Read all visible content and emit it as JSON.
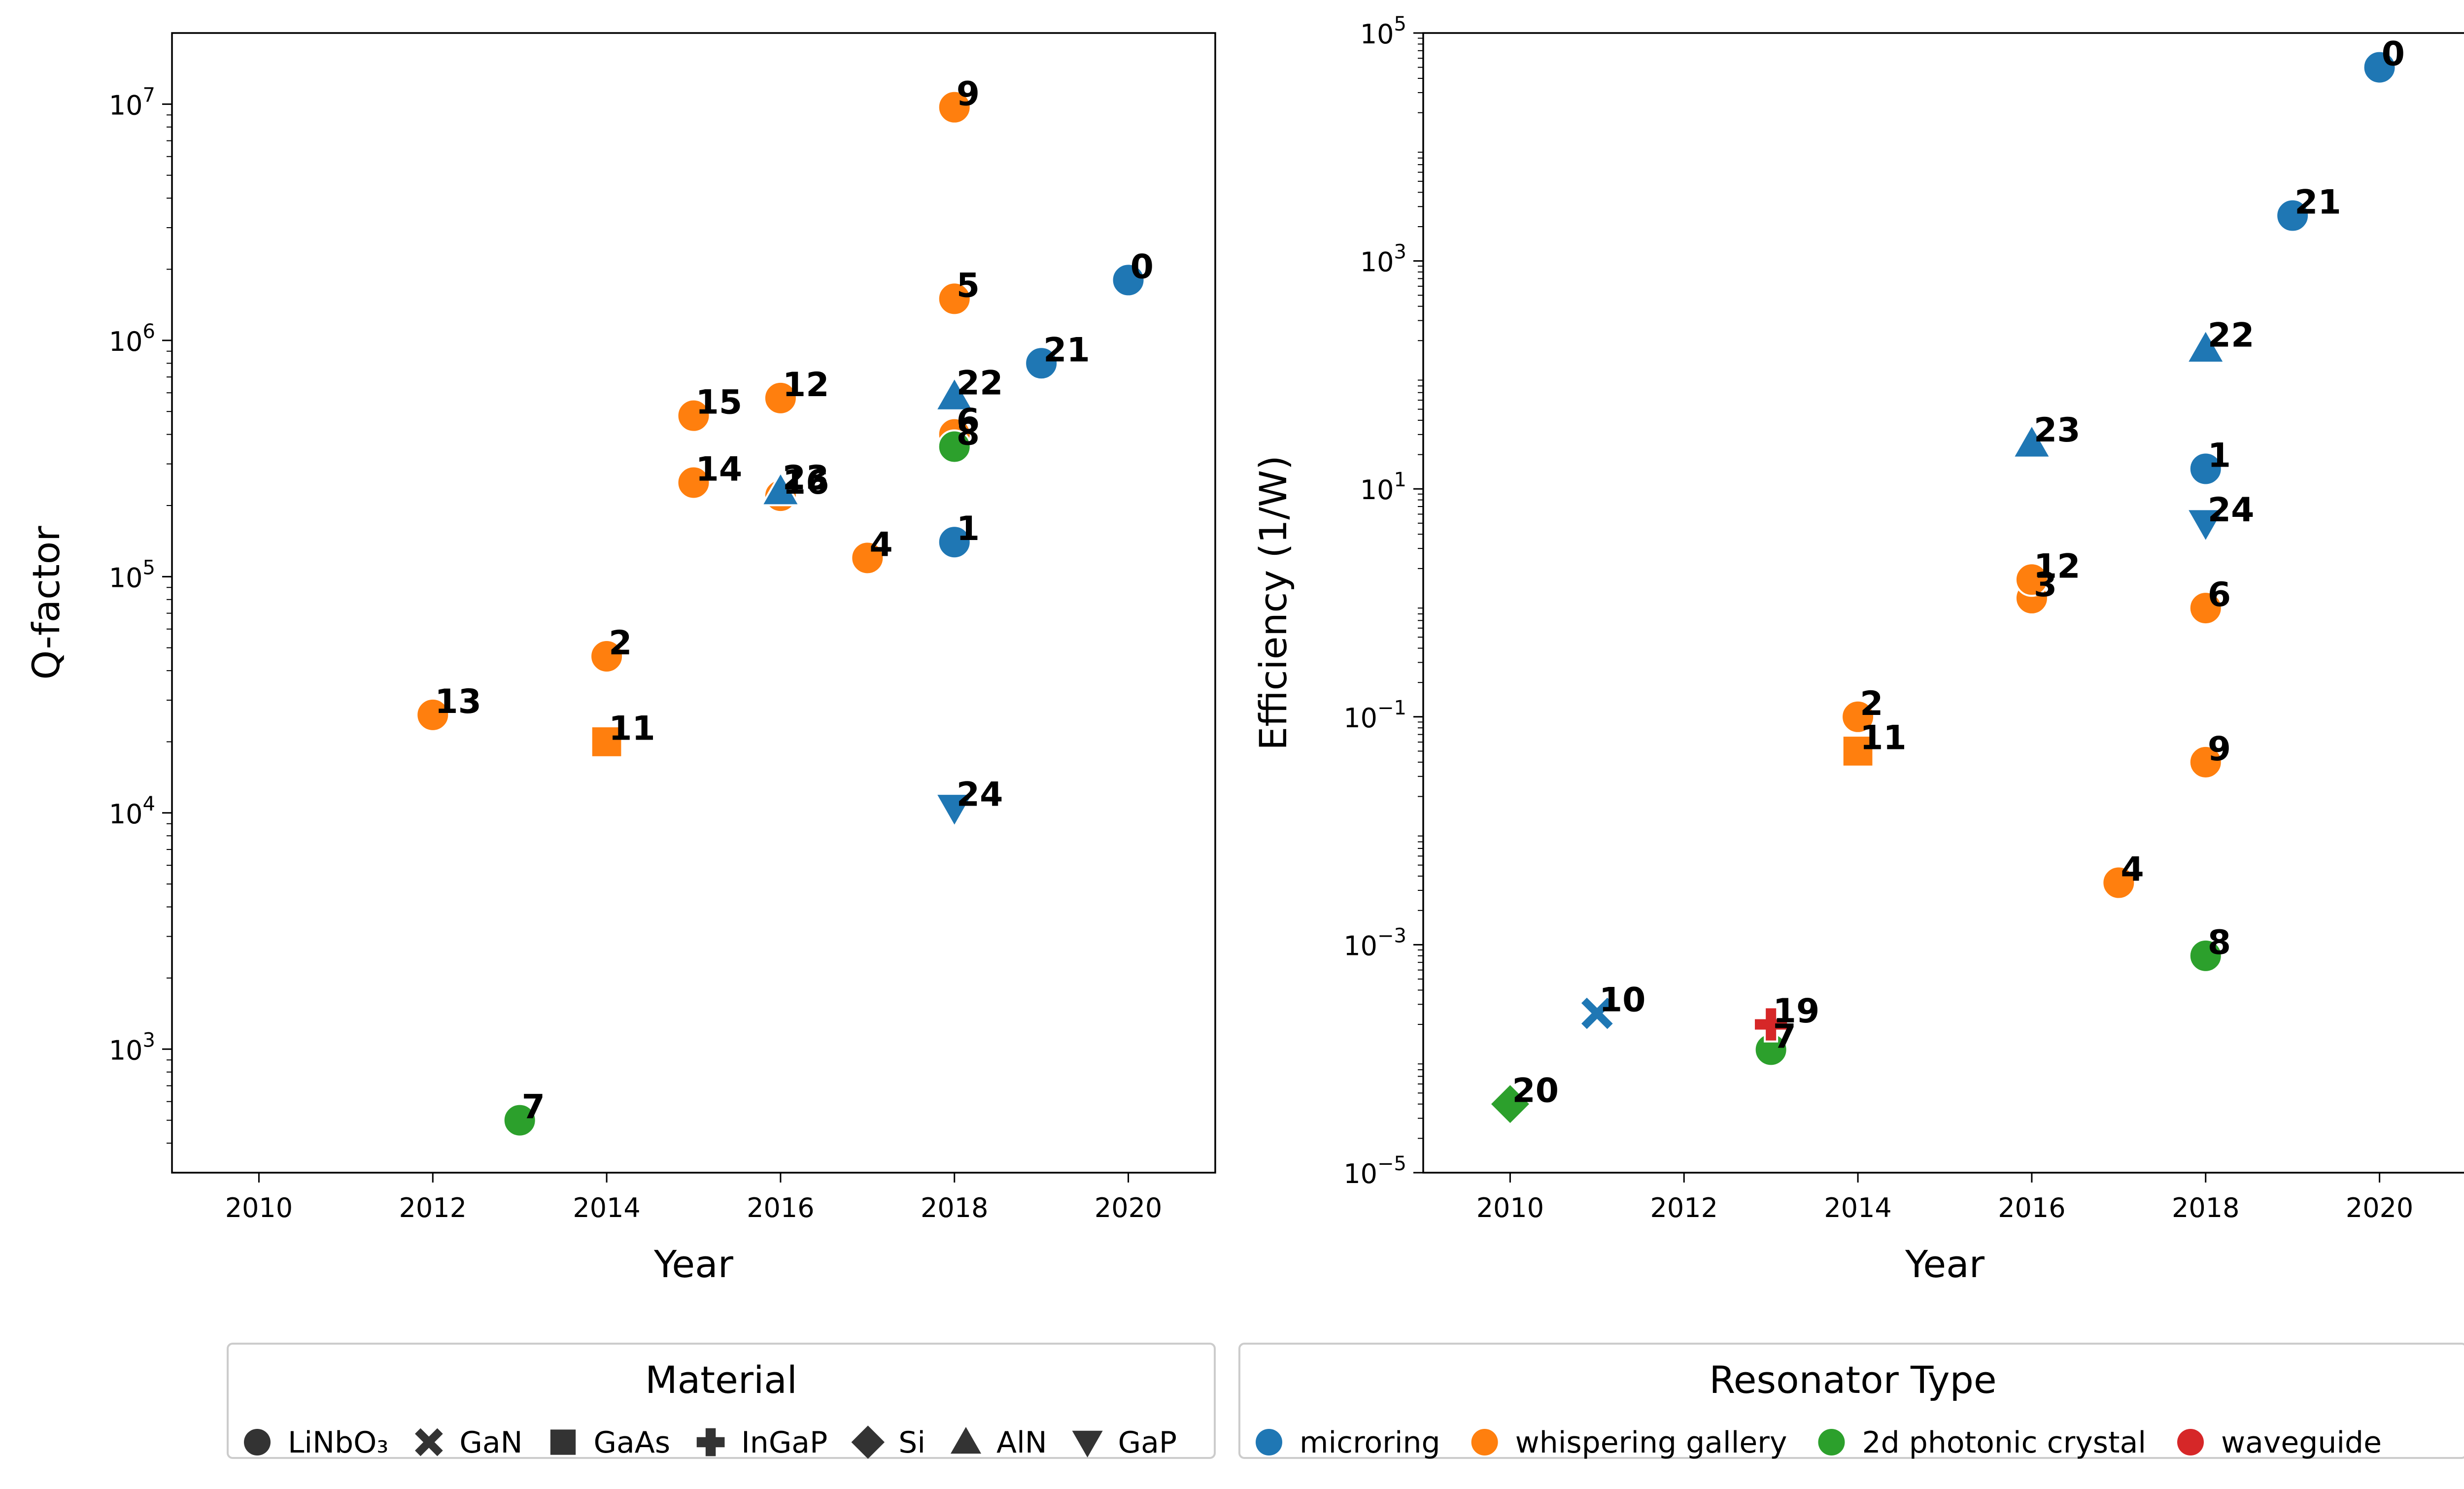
{
  "chart_data": [
    {
      "type": "scatter",
      "xlabel": "Year",
      "ylabel": "Q-factor",
      "yscale": "log",
      "xlim": [
        2009,
        2021
      ],
      "ylim": [
        300,
        20000000
      ],
      "xticks": [
        2010,
        2012,
        2014,
        2016,
        2018,
        2020
      ],
      "yticks": [
        {
          "value": 1000,
          "base": "10",
          "exp": "3"
        },
        {
          "value": 10000,
          "base": "10",
          "exp": "4"
        },
        {
          "value": 100000,
          "base": "10",
          "exp": "5"
        },
        {
          "value": 1000000,
          "base": "10",
          "exp": "6"
        },
        {
          "value": 10000000,
          "base": "10",
          "exp": "7"
        }
      ],
      "grid": false,
      "points": [
        {
          "label": "0",
          "x": 2020,
          "y": 1800000,
          "type": "microring",
          "material": "LiNbO3"
        },
        {
          "label": "1",
          "x": 2018,
          "y": 140000,
          "type": "microring",
          "material": "LiNbO3"
        },
        {
          "label": "2",
          "x": 2014,
          "y": 46000,
          "type": "whispering gallery",
          "material": "LiNbO3"
        },
        {
          "label": "4",
          "x": 2017,
          "y": 120000,
          "type": "whispering gallery",
          "material": "LiNbO3"
        },
        {
          "label": "5",
          "x": 2018,
          "y": 1500000,
          "type": "whispering gallery",
          "material": "LiNbO3"
        },
        {
          "label": "6",
          "x": 2018,
          "y": 400000,
          "type": "whispering gallery",
          "material": "LiNbO3"
        },
        {
          "label": "7",
          "x": 2013,
          "y": 500,
          "type": "2d photonic crystal",
          "material": "LiNbO3"
        },
        {
          "label": "8",
          "x": 2018,
          "y": 355000,
          "type": "2d photonic crystal",
          "material": "LiNbO3"
        },
        {
          "label": "9",
          "x": 2018,
          "y": 9700000,
          "type": "whispering gallery",
          "material": "LiNbO3"
        },
        {
          "label": "11",
          "x": 2014,
          "y": 20000,
          "type": "whispering gallery",
          "material": "GaAs"
        },
        {
          "label": "12",
          "x": 2016,
          "y": 570000,
          "type": "whispering gallery",
          "material": "LiNbO3"
        },
        {
          "label": "13",
          "x": 2012,
          "y": 26000,
          "type": "whispering gallery",
          "material": "LiNbO3"
        },
        {
          "label": "14",
          "x": 2015,
          "y": 250000,
          "type": "whispering gallery",
          "material": "LiNbO3"
        },
        {
          "label": "15",
          "x": 2015,
          "y": 480000,
          "type": "whispering gallery",
          "material": "LiNbO3"
        },
        {
          "label": "16",
          "x": 2016,
          "y": 220000,
          "type": "whispering gallery",
          "material": "LiNbO3"
        },
        {
          "label": "21",
          "x": 2019,
          "y": 800000,
          "type": "microring",
          "material": "LiNbO3"
        },
        {
          "label": "22",
          "x": 2018,
          "y": 580000,
          "type": "microring",
          "material": "AlN"
        },
        {
          "label": "23",
          "x": 2016,
          "y": 230000,
          "type": "microring",
          "material": "AlN"
        },
        {
          "label": "24",
          "x": 2018,
          "y": 10500,
          "type": "microring",
          "material": "GaP"
        }
      ]
    },
    {
      "type": "scatter",
      "xlabel": "Year",
      "ylabel": "Efficiency (1/W)",
      "yscale": "log",
      "xlim": [
        2009,
        2021
      ],
      "ylim": [
        1e-05,
        100000
      ],
      "xticks": [
        2010,
        2012,
        2014,
        2016,
        2018,
        2020
      ],
      "yticks": [
        {
          "value": 1e-05,
          "base": "10",
          "exp": "−5"
        },
        {
          "value": 0.001,
          "base": "10",
          "exp": "−3"
        },
        {
          "value": 0.1,
          "base": "10",
          "exp": "−1"
        },
        {
          "value": 10,
          "base": "10",
          "exp": "1"
        },
        {
          "value": 1000,
          "base": "10",
          "exp": "3"
        },
        {
          "value": 100000,
          "base": "10",
          "exp": "5"
        }
      ],
      "grid": false,
      "points": [
        {
          "label": "0",
          "x": 2020,
          "y": 50000,
          "type": "microring",
          "material": "LiNbO3"
        },
        {
          "label": "1",
          "x": 2018,
          "y": 15,
          "type": "microring",
          "material": "LiNbO3"
        },
        {
          "label": "2",
          "x": 2014,
          "y": 0.1,
          "type": "whispering gallery",
          "material": "LiNbO3"
        },
        {
          "label": "3",
          "x": 2016,
          "y": 1.1,
          "type": "whispering gallery",
          "material": "LiNbO3"
        },
        {
          "label": "4",
          "x": 2017,
          "y": 0.0035,
          "type": "whispering gallery",
          "material": "LiNbO3"
        },
        {
          "label": "6",
          "x": 2018,
          "y": 0.9,
          "type": "whispering gallery",
          "material": "LiNbO3"
        },
        {
          "label": "7",
          "x": 2013,
          "y": 0.00012,
          "type": "2d photonic crystal",
          "material": "LiNbO3"
        },
        {
          "label": "8",
          "x": 2018,
          "y": 0.0008,
          "type": "2d photonic crystal",
          "material": "LiNbO3"
        },
        {
          "label": "9",
          "x": 2018,
          "y": 0.04,
          "type": "whispering gallery",
          "material": "LiNbO3"
        },
        {
          "label": "10",
          "x": 2011,
          "y": 0.00025,
          "type": "microring",
          "material": "GaN"
        },
        {
          "label": "11",
          "x": 2014,
          "y": 0.05,
          "type": "whispering gallery",
          "material": "GaAs"
        },
        {
          "label": "12",
          "x": 2016,
          "y": 1.6,
          "type": "whispering gallery",
          "material": "LiNbO3"
        },
        {
          "label": "19",
          "x": 2013,
          "y": 0.0002,
          "type": "waveguide",
          "material": "InGaP"
        },
        {
          "label": "20",
          "x": 2010,
          "y": 4e-05,
          "type": "2d photonic crystal",
          "material": "Si"
        },
        {
          "label": "21",
          "x": 2019,
          "y": 2500,
          "type": "microring",
          "material": "LiNbO3"
        },
        {
          "label": "22",
          "x": 2018,
          "y": 170,
          "type": "microring",
          "material": "AlN"
        },
        {
          "label": "23",
          "x": 2016,
          "y": 25,
          "type": "microring",
          "material": "AlN"
        },
        {
          "label": "24",
          "x": 2018,
          "y": 5,
          "type": "microring",
          "material": "GaP"
        }
      ]
    }
  ],
  "legends": {
    "material": {
      "title": "Material",
      "items": [
        {
          "label": "LiNbO₃",
          "key": "LiNbO3"
        },
        {
          "label": "GaN",
          "key": "GaN"
        },
        {
          "label": "GaAs",
          "key": "GaAs"
        },
        {
          "label": "InGaP",
          "key": "InGaP"
        },
        {
          "label": "Si",
          "key": "Si"
        },
        {
          "label": "AlN",
          "key": "AlN"
        },
        {
          "label": "GaP",
          "key": "GaP"
        }
      ]
    },
    "resonator": {
      "title": "Resonator Type",
      "items": [
        {
          "label": "microring",
          "key": "microring",
          "color": "#1f77b4"
        },
        {
          "label": "whispering gallery",
          "key": "whispering gallery",
          "color": "#ff7f0e"
        },
        {
          "label": "2d photonic crystal",
          "key": "2d photonic crystal",
          "color": "#2ca02c"
        },
        {
          "label": "waveguide",
          "key": "waveguide",
          "color": "#d62728"
        }
      ]
    }
  },
  "colors": {
    "microring": "#1f77b4",
    "whispering gallery": "#ff7f0e",
    "2d photonic crystal": "#2ca02c",
    "waveguide": "#d62728",
    "legend_marker": "#333333"
  }
}
